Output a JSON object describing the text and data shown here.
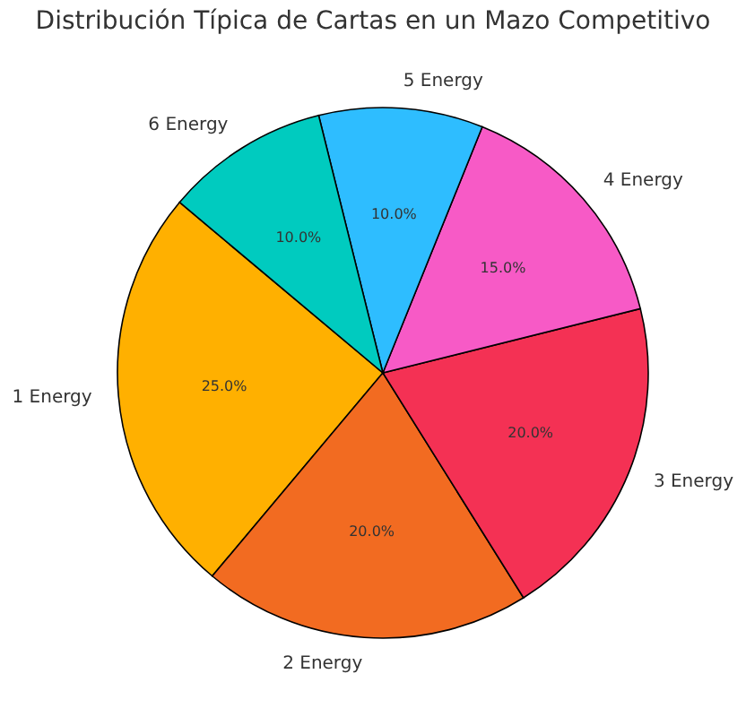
{
  "chart_data": {
    "type": "pie",
    "title": "Distribución Típica de Cartas en un Mazo Competitivo",
    "categories": [
      "1 Energy",
      "2 Energy",
      "3 Energy",
      "4 Energy",
      "5 Energy",
      "6 Energy"
    ],
    "values": [
      25,
      20,
      20,
      15,
      10,
      10
    ],
    "colors": [
      "#ffb000",
      "#f26b21",
      "#f43154",
      "#f75ac6",
      "#2ebdff",
      "#00cbbf"
    ],
    "value_labels": [
      "25.0%",
      "20.0%",
      "20.0%",
      "15.0%",
      "10.0%",
      "10.0%"
    ]
  }
}
